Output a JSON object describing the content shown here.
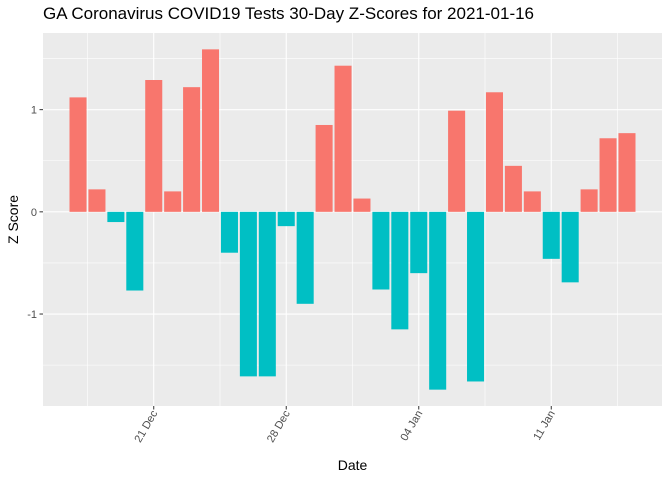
{
  "chart_data": {
    "type": "bar",
    "title": "GA Coronavirus COVID19 Tests 30-Day Z-Scores for 2021-01-16",
    "xlabel": "Date",
    "ylabel": "Z Score",
    "x": [
      "2020-12-17",
      "2020-12-18",
      "2020-12-19",
      "2020-12-20",
      "2020-12-21",
      "2020-12-22",
      "2020-12-23",
      "2020-12-24",
      "2020-12-25",
      "2020-12-26",
      "2020-12-27",
      "2020-12-28",
      "2020-12-29",
      "2020-12-30",
      "2020-12-31",
      "2021-01-01",
      "2021-01-02",
      "2021-01-03",
      "2021-01-04",
      "2021-01-05",
      "2021-01-06",
      "2021-01-07",
      "2021-01-08",
      "2021-01-09",
      "2021-01-10",
      "2021-01-11",
      "2021-01-12",
      "2021-01-13",
      "2021-01-14",
      "2021-01-15"
    ],
    "values": [
      1.12,
      0.22,
      -0.1,
      -0.77,
      1.29,
      0.2,
      1.22,
      1.59,
      -0.4,
      -1.61,
      -1.61,
      -0.14,
      -0.9,
      0.85,
      1.43,
      0.13,
      -0.76,
      -1.15,
      -0.6,
      -1.74,
      0.99,
      -1.66,
      1.17,
      0.45,
      0.2,
      -0.46,
      -0.69,
      0.22,
      0.72,
      0.77
    ],
    "ylim": [
      -1.9,
      1.75
    ],
    "yticks": [
      -1,
      0,
      1
    ],
    "yticklabels": [
      "-1",
      "0",
      "1"
    ],
    "xticks": [
      "2020-12-21",
      "2020-12-28",
      "2021-01-04",
      "2021-01-11"
    ],
    "xticklabels": [
      "21 Dec",
      "28 Dec",
      "04 Jan",
      "11 Jan"
    ],
    "grid": true,
    "legend": "none",
    "colors": {
      "positive": "#F8766D",
      "negative": "#00BFC4",
      "panel": "#EBEBEB",
      "grid": "#FFFFFF"
    }
  }
}
